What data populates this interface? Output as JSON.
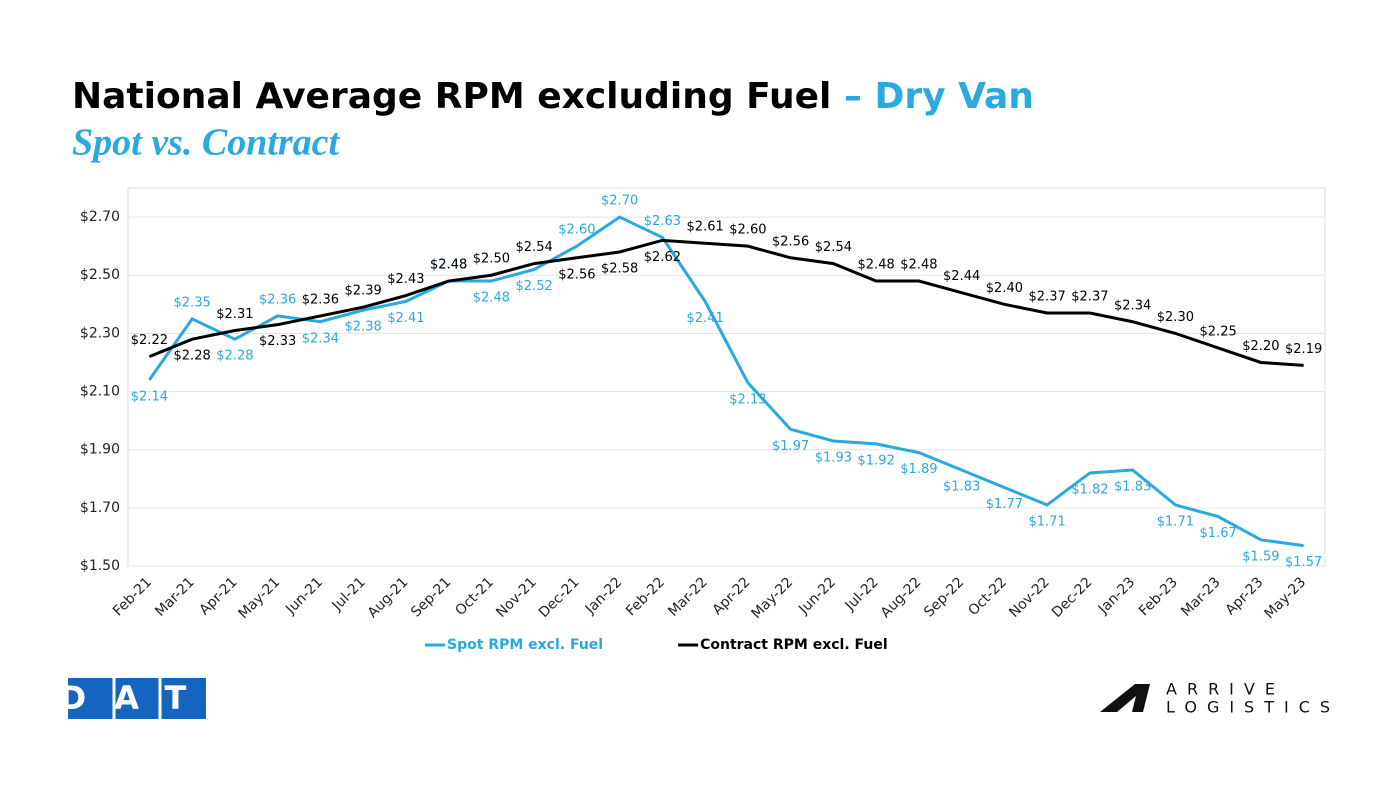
{
  "chart_data": {
    "type": "line",
    "title": "National Average RPM excluding Fuel",
    "title_highlight": "– Dry Van",
    "subtitle": "Spot vs. Contract",
    "categories": [
      "Feb-21",
      "Mar-21",
      "Apr-21",
      "May-21",
      "Jun-21",
      "Jul-21",
      "Aug-21",
      "Sep-21",
      "Oct-21",
      "Nov-21",
      "Dec-21",
      "Jan-22",
      "Feb-22",
      "Mar-22",
      "Apr-22",
      "May-22",
      "Jun-22",
      "Jul-22",
      "Aug-22",
      "Sep-22",
      "Oct-22",
      "Nov-22",
      "Dec-22",
      "Jan-23",
      "Feb-23",
      "Mar-23",
      "Apr-23",
      "May-23"
    ],
    "series": [
      {
        "name": "Spot RPM excl. Fuel",
        "color": "#29a9e0",
        "values": [
          2.14,
          2.35,
          2.28,
          2.36,
          2.34,
          2.38,
          2.41,
          2.48,
          2.48,
          2.52,
          2.6,
          2.7,
          2.63,
          2.41,
          2.13,
          1.97,
          1.93,
          1.92,
          1.89,
          1.83,
          1.77,
          1.71,
          1.82,
          1.83,
          1.71,
          1.67,
          1.59,
          1.57
        ],
        "value_labels": [
          "$2.14",
          "$2.35",
          "$2.28",
          "$2.36",
          "$2.34",
          "$2.38",
          "$2.41",
          "$2.48",
          "$2.48",
          "$2.52",
          "$2.60",
          "$2.70",
          "$2.63",
          "$2.41",
          "$2.13",
          "$1.97",
          "$1.93",
          "$1.92",
          "$1.89",
          "$1.83",
          "$1.77",
          "$1.71",
          "$1.82",
          "$1.83",
          "$1.71",
          "$1.67",
          "$1.59",
          "$1.57"
        ]
      },
      {
        "name": "Contract RPM excl. Fuel",
        "color": "#000000",
        "values": [
          2.22,
          2.28,
          2.31,
          2.33,
          2.36,
          2.39,
          2.43,
          2.48,
          2.5,
          2.54,
          2.56,
          2.58,
          2.62,
          2.61,
          2.6,
          2.56,
          2.54,
          2.48,
          2.48,
          2.44,
          2.4,
          2.37,
          2.37,
          2.34,
          2.3,
          2.25,
          2.2,
          2.19
        ],
        "value_labels": [
          "$2.22",
          "$2.28",
          "$2.31",
          "$2.33",
          "$2.36",
          "$2.39",
          "$2.43",
          "$2.48",
          "$2.50",
          "$2.54",
          "$2.56",
          "$2.58",
          "$2.62",
          "$2.61",
          "$2.60",
          "$2.56",
          "$2.54",
          "$2.48",
          "$2.48",
          "$2.44",
          "$2.40",
          "$2.37",
          "$2.37",
          "$2.34",
          "$2.30",
          "$2.25",
          "$2.20",
          "$2.19"
        ]
      }
    ],
    "ylim": [
      1.5,
      2.8
    ],
    "yticks": [
      {
        "value": 1.5,
        "label": "$1.50"
      },
      {
        "value": 1.7,
        "label": "$1.70"
      },
      {
        "value": 1.9,
        "label": "$1.90"
      },
      {
        "value": 2.1,
        "label": "$2.10"
      },
      {
        "value": 2.3,
        "label": "$2.30"
      },
      {
        "value": 2.5,
        "label": "$2.50"
      },
      {
        "value": 2.7,
        "label": "$2.70"
      }
    ],
    "grid": true,
    "legend": "bottom"
  },
  "logos": {
    "dat": "DAT",
    "arrive": "ARRIVE",
    "logistics": "LOGISTICS"
  }
}
